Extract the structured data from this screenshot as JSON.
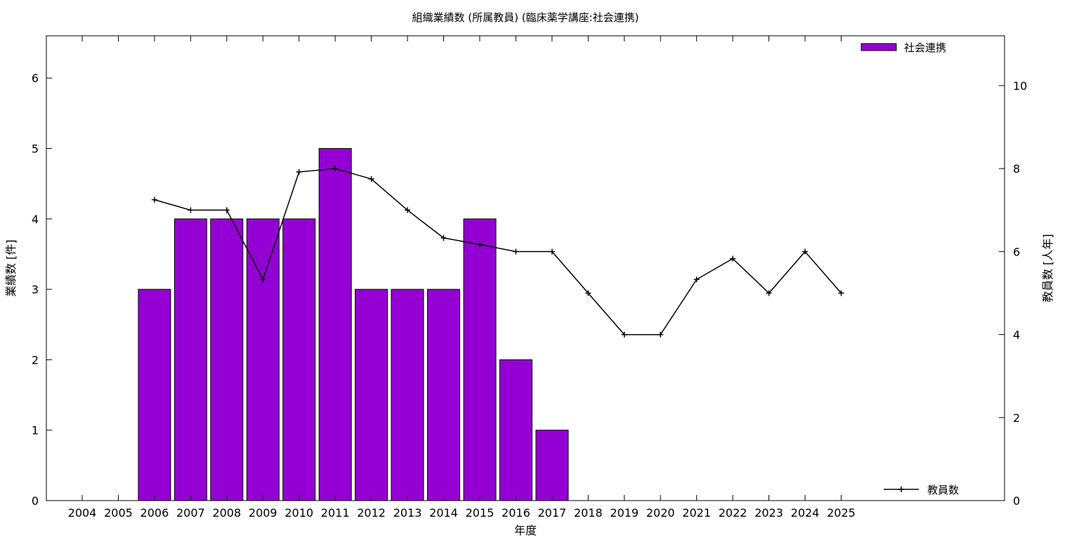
{
  "chart_data": {
    "type": "bar",
    "title": "組織業績数 (所属教員) (臨床薬学講座:社会連携)",
    "xlabel": "年度",
    "ylabel": "業績数 [件]",
    "y2label": "教員数 [人年]",
    "categories": [
      "2004",
      "2005",
      "2006",
      "2007",
      "2008",
      "2009",
      "2010",
      "2011",
      "2012",
      "2013",
      "2014",
      "2015",
      "2016",
      "2017",
      "2018",
      "2019",
      "2020",
      "2021",
      "2022",
      "2023",
      "2024",
      "2025"
    ],
    "ylim": [
      0,
      6.6
    ],
    "y2lim": [
      0,
      11.2
    ],
    "yticks": [
      0,
      1,
      2,
      3,
      4,
      5,
      6
    ],
    "y2ticks": [
      0,
      2,
      4,
      6,
      8,
      10
    ],
    "grid": false,
    "series": [
      {
        "name": "社会連携",
        "kind": "bar",
        "axis": "left",
        "color": "#9400d3",
        "values": [
          0,
          0,
          3,
          4,
          4,
          4,
          4,
          5,
          3,
          3,
          3,
          4,
          2,
          1,
          0,
          0,
          0,
          0,
          0,
          0,
          0,
          0
        ]
      },
      {
        "name": "教員数",
        "kind": "line",
        "axis": "right",
        "color": "#000000",
        "values": [
          null,
          null,
          7.25,
          7.0,
          7.0,
          5.33,
          7.92,
          8.0,
          7.75,
          7.0,
          6.33,
          6.17,
          6.0,
          6.0,
          5.0,
          4.0,
          4.0,
          5.33,
          5.83,
          5.0,
          6.0,
          5.0
        ]
      }
    ],
    "legend": [
      {
        "label": "社会連携",
        "position": "top-right"
      },
      {
        "label": "教員数",
        "position": "bottom-right"
      }
    ]
  }
}
